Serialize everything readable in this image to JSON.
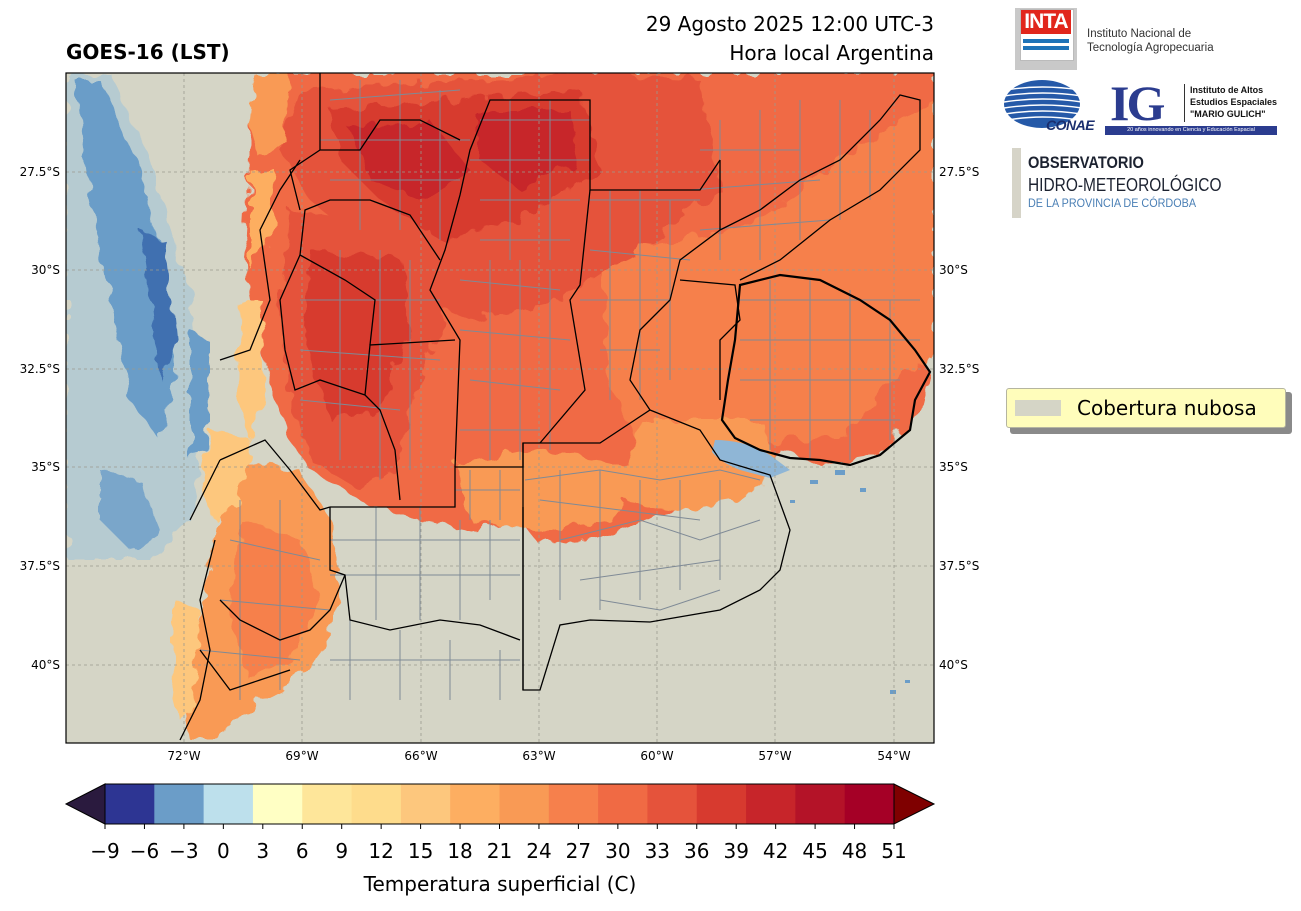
{
  "header": {
    "title": "GOES-16 (LST)",
    "datetime": "29 Agosto 2025 12:00 UTC-3",
    "subtitle": "Hora local Argentina"
  },
  "map": {
    "lat_labels": [
      "27.5°S",
      "30°S",
      "32.5°S",
      "35°S",
      "37.5°S",
      "40°S"
    ],
    "lon_labels": [
      "72°W",
      "69°W",
      "66°W",
      "63°W",
      "60°W",
      "57°W",
      "54°W"
    ],
    "colors": {
      "background_cloud": "#d5d5c6",
      "province_border": "#000000",
      "department_border": "#7f8a96",
      "gridline": "#9a9a8e"
    }
  },
  "colorbar": {
    "tick_labels": [
      "−9",
      "−6",
      "−3",
      "0",
      "3",
      "6",
      "9",
      "12",
      "15",
      "18",
      "21",
      "24",
      "27",
      "30",
      "33",
      "36",
      "39",
      "42",
      "45",
      "48",
      "51"
    ],
    "label": "Temperatura superficial (C)",
    "colors": [
      "#2d3593",
      "#6b9dc8",
      "#bde0ec",
      "#ffffc4",
      "#fee69a",
      "#fedc8c",
      "#fdc77d",
      "#fdae61",
      "#f99a55",
      "#f6804c",
      "#f06a44",
      "#e5533b",
      "#d73a2f",
      "#c7252a",
      "#b41328",
      "#a50026"
    ],
    "under_color": "#2a1a3e",
    "over_color": "#7f0000"
  },
  "legend": {
    "label": "Cobertura nubosa",
    "swatch_color": "#d5d5c6"
  },
  "logos": {
    "inta": {
      "word": "INTA",
      "line1": "Instituto Nacional de",
      "line2": "Tecnología Agropecuaria"
    },
    "conae": {
      "word": "CONAE"
    },
    "ig": {
      "letters": "IG",
      "line1": "Instituto de Altos",
      "line2": "Estudios Espaciales",
      "line3": "\"MARIO GULICH\"",
      "band": "20 años innovando en Ciencia y Educación Espacial"
    },
    "observatorio": {
      "line1": "OBSERVATORIO",
      "line2": "HIDRO-METEOROLÓGICO",
      "line3": "DE LA PROVINCIA DE CÓRDOBA"
    }
  }
}
